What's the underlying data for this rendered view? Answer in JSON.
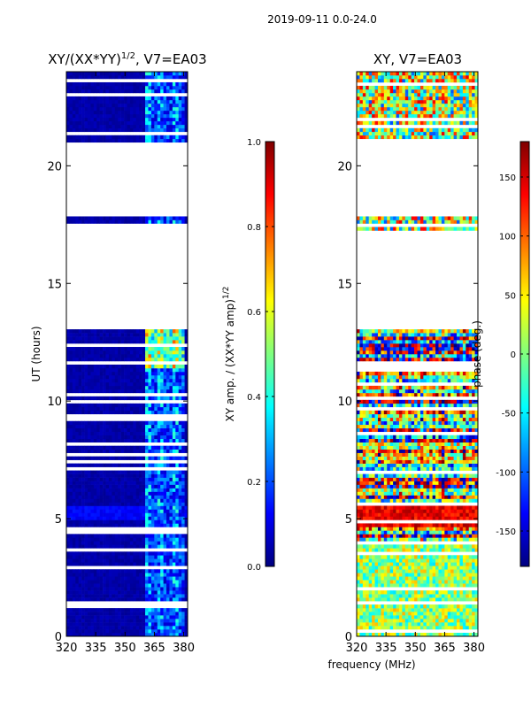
{
  "suptitle": "2019-09-11 0.0-24.0",
  "xlabel": "frequency (MHz)",
  "colors": {
    "jet": [
      "#00007f",
      "#0000ff",
      "#007fff",
      "#00ffff",
      "#7fff7f",
      "#ffff00",
      "#ff7f00",
      "#ff0000",
      "#7f0000"
    ]
  },
  "chart_data": [
    {
      "type": "heatmap",
      "title": "XY/(XX*YY)^{1/2}, V7=EA03",
      "title_main": "XY/(XX*YY)",
      "title_sup": "1/2",
      "title_tail": ", V7=EA03",
      "xlabel": "frequency (MHz)",
      "ylabel": "UT (hours)",
      "xlim": [
        320,
        382
      ],
      "ylim": [
        0,
        24
      ],
      "xticks": [
        "320",
        "335",
        "350",
        "365",
        "380"
      ],
      "xtick_values": [
        320,
        335,
        350,
        365,
        380
      ],
      "yticks": [
        "0",
        "5",
        "10",
        "15",
        "20"
      ],
      "ytick_values": [
        0,
        5,
        10,
        15,
        20
      ],
      "data_gaps_hours": [
        [
          13.0,
          17.3
        ],
        [
          17.9,
          21.0
        ]
      ],
      "bright_band_mhz": [
        360,
        380
      ],
      "colorbar": {
        "label": "XY amp. / (XX*YY amp)^{1/2}",
        "label_main": "XY amp. / (XX*YY amp)",
        "label_sup": "1/2",
        "ticks": [
          "0.0",
          "0.2",
          "0.4",
          "0.6",
          "0.8",
          "1.0"
        ],
        "tick_values": [
          0.0,
          0.2,
          0.4,
          0.6,
          0.8,
          1.0
        ],
        "range": [
          0,
          1
        ]
      }
    },
    {
      "type": "heatmap",
      "title": "XY, V7=EA03",
      "xlabel": "frequency (MHz)",
      "ylabel": "",
      "xlim": [
        320,
        382
      ],
      "ylim": [
        0,
        24
      ],
      "xticks": [
        "320",
        "335",
        "350",
        "365",
        "380"
      ],
      "xtick_values": [
        320,
        335,
        350,
        365,
        380
      ],
      "yticks": [
        "0",
        "5",
        "10",
        "15",
        "20"
      ],
      "ytick_values": [
        0,
        5,
        10,
        15,
        20
      ],
      "data_gaps_hours": [
        [
          13.0,
          17.3
        ],
        [
          17.9,
          21.0
        ]
      ],
      "colorbar": {
        "label": "phase (deg.)",
        "ticks": [
          "-150",
          "-100",
          "-50",
          "0",
          "50",
          "100",
          "150"
        ],
        "tick_values": [
          -150,
          -100,
          -50,
          0,
          50,
          100,
          150
        ],
        "range": [
          -180,
          180
        ]
      }
    }
  ]
}
